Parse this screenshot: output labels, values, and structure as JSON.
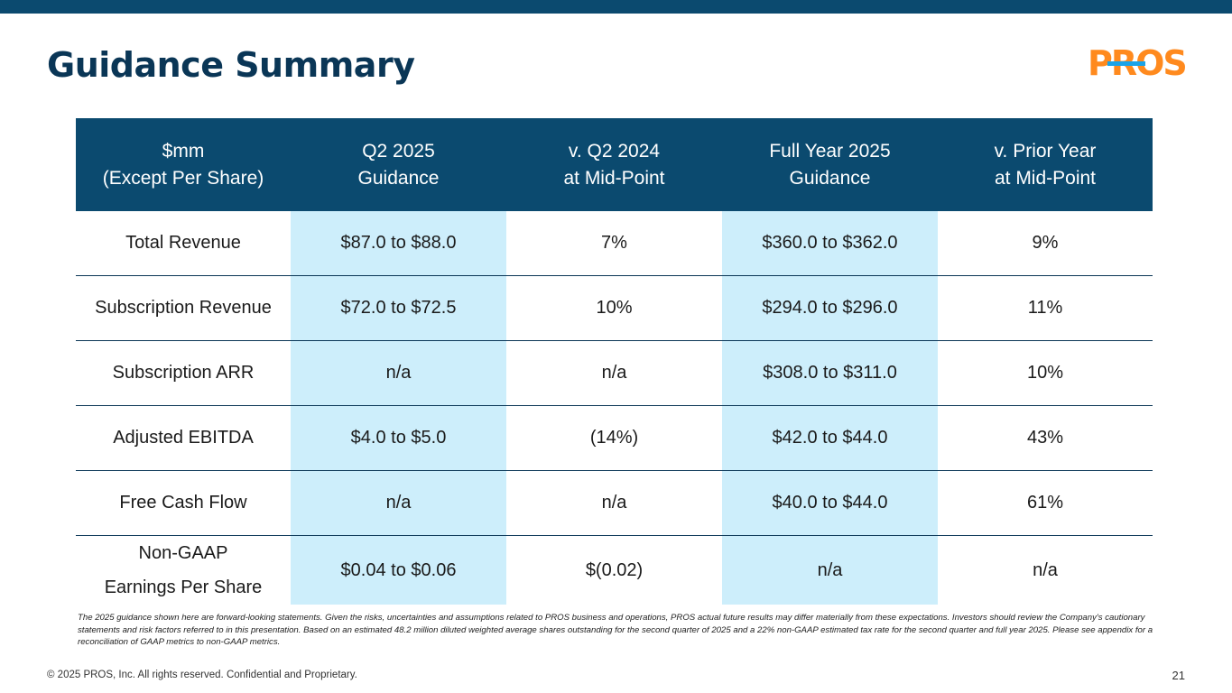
{
  "slide": {
    "title": "Guidance Summary",
    "logo_text": "PROS",
    "colors": {
      "header_bg": "#0b4a6f",
      "highlight_col": "#cdeefb",
      "logo_orange": "#ff8a1e",
      "logo_blue": "#1aa3e8"
    }
  },
  "table": {
    "headers": [
      {
        "line1": "$mm",
        "line2": "(Except Per Share)"
      },
      {
        "line1": "Q2 2025",
        "line2": "Guidance"
      },
      {
        "line1": "v. Q2 2024",
        "line2": "at Mid-Point"
      },
      {
        "line1": "Full Year 2025",
        "line2": "Guidance"
      },
      {
        "line1": "v. Prior Year",
        "line2": "at Mid-Point"
      }
    ],
    "rows": [
      {
        "metric": "Total Revenue",
        "q2_guidance": "$87.0 to $88.0",
        "v_q2_2024": "7%",
        "fy_guidance": "$360.0 to $362.0",
        "v_prior_year": "9%"
      },
      {
        "metric": "Subscription Revenue",
        "q2_guidance": "$72.0 to $72.5",
        "v_q2_2024": "10%",
        "fy_guidance": "$294.0 to $296.0",
        "v_prior_year": "11%"
      },
      {
        "metric": "Subscription ARR",
        "q2_guidance": "n/a",
        "v_q2_2024": "n/a",
        "fy_guidance": "$308.0 to $311.0",
        "v_prior_year": "10%"
      },
      {
        "metric": "Adjusted EBITDA",
        "q2_guidance": "$4.0 to $5.0",
        "v_q2_2024": "(14%)",
        "fy_guidance": "$42.0 to $44.0",
        "v_prior_year": "43%"
      },
      {
        "metric": "Free Cash Flow",
        "q2_guidance": "n/a",
        "v_q2_2024": "n/a",
        "fy_guidance": "$40.0 to $44.0",
        "v_prior_year": "61%"
      },
      {
        "metric_line1": "Non-GAAP",
        "metric_line2": "Earnings Per Share",
        "q2_guidance": "$0.04 to $0.06",
        "v_q2_2024": "$(0.02)",
        "fy_guidance": "n/a",
        "v_prior_year": "n/a"
      }
    ]
  },
  "footer": {
    "disclaimer": "The 2025 guidance shown here are forward-looking statements. Given the risks, uncertainties and assumptions related to PROS business and operations, PROS actual future results may differ materially from these expectations. Investors should review the Company's cautionary statements and risk factors referred to in this presentation. Based on an estimated 48.2 million diluted weighted average shares outstanding for the second quarter of 2025 and a 22% non-GAAP estimated tax rate for the second quarter and full year 2025. Please see appendix for a reconciliation of GAAP metrics to non-GAAP metrics.",
    "copyright": "© 2025 PROS, Inc. All rights reserved. Confidential and Proprietary.",
    "page_number": "21"
  }
}
